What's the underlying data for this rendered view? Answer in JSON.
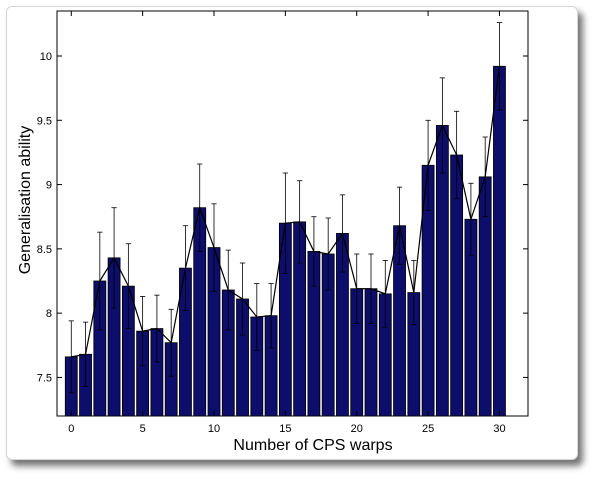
{
  "chart_data": {
    "type": "bar",
    "xlabel": "Number of CPS warps",
    "ylabel": "Generalisation ability",
    "xlim": [
      -1,
      32
    ],
    "ylim": [
      7.2,
      10.35
    ],
    "x_ticks": [
      0,
      5,
      10,
      15,
      20,
      25,
      30
    ],
    "y_ticks": [
      7.5,
      8,
      8.5,
      9,
      9.5,
      10
    ],
    "x_tick_labels": [
      "0",
      "5",
      "10",
      "15",
      "20",
      "25",
      "30"
    ],
    "y_tick_labels": [
      "7.5",
      "8",
      "8.5",
      "9",
      "9.5",
      "10"
    ],
    "grid": false,
    "bar_color": "#0d0d6b",
    "line_color": "#000000",
    "series": [
      {
        "x": [
          0,
          1,
          2,
          3,
          4,
          5,
          6,
          7,
          8,
          9,
          10,
          11,
          12,
          13,
          14,
          15,
          16,
          17,
          18,
          19,
          20,
          21,
          22,
          23,
          24,
          25,
          26,
          27,
          28,
          29,
          30
        ],
        "values": [
          7.66,
          7.68,
          8.25,
          8.43,
          8.21,
          7.86,
          7.88,
          7.77,
          8.35,
          8.82,
          8.51,
          8.18,
          8.11,
          7.97,
          7.98,
          8.7,
          8.71,
          8.48,
          8.46,
          8.62,
          8.19,
          8.19,
          8.15,
          8.68,
          8.16,
          9.15,
          9.46,
          9.23,
          8.73,
          9.06,
          9.92
        ],
        "error": [
          0.28,
          0.25,
          0.38,
          0.39,
          0.33,
          0.27,
          0.26,
          0.26,
          0.33,
          0.34,
          0.34,
          0.31,
          0.28,
          0.26,
          0.25,
          0.39,
          0.32,
          0.27,
          0.28,
          0.3,
          0.27,
          0.27,
          0.26,
          0.3,
          0.25,
          0.35,
          0.37,
          0.34,
          0.28,
          0.31,
          0.34
        ]
      }
    ]
  }
}
